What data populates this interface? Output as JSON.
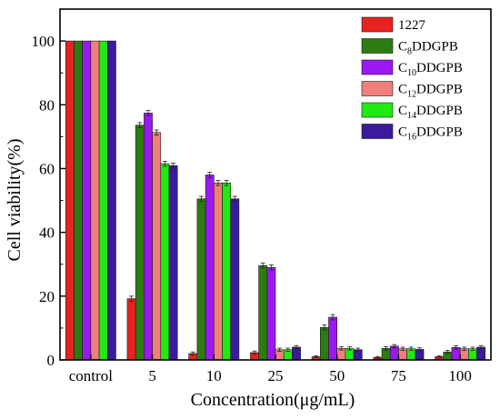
{
  "chart_data": {
    "type": "bar",
    "xlabel": "Concentration(μg/mL)",
    "ylabel": "Cell viability(%)",
    "ylim": [
      0,
      110
    ],
    "yticks": [
      0,
      20,
      40,
      60,
      80,
      100
    ],
    "grid": false,
    "legend_position": "top-right",
    "categories": [
      "control",
      "5",
      "10",
      "25",
      "50",
      "75",
      "100"
    ],
    "series": [
      {
        "name": "1227",
        "prefix": "",
        "sub": "",
        "suffix": "1227",
        "color": "#e8221e",
        "values": [
          100,
          19.2,
          2.0,
          2.3,
          1.0,
          0.8,
          1.0
        ],
        "errors": [
          0,
          0.8,
          0.5,
          0.5,
          0.3,
          0.3,
          0.3
        ]
      },
      {
        "name": "C8DDGPB",
        "prefix": "C",
        "sub": "8",
        "suffix": "DDGPB",
        "color": "#2c7c12",
        "values": [
          100,
          73.6,
          50.5,
          29.6,
          10.2,
          3.6,
          2.5
        ],
        "errors": [
          0,
          0.8,
          0.8,
          0.8,
          0.8,
          0.5,
          0.5
        ]
      },
      {
        "name": "C10DDGPB",
        "prefix": "C",
        "sub": "10",
        "suffix": "DDGPB",
        "color": "#9a19ef",
        "values": [
          100,
          77.4,
          58.0,
          29.0,
          13.4,
          4.3,
          3.9
        ],
        "errors": [
          0,
          0.8,
          0.8,
          0.8,
          0.8,
          0.5,
          0.5
        ]
      },
      {
        "name": "C12DDGPB",
        "prefix": "C",
        "sub": "12",
        "suffix": "DDGPB",
        "color": "#f07f7b",
        "values": [
          100,
          71.3,
          55.5,
          3.2,
          3.6,
          3.5,
          3.5
        ],
        "errors": [
          0,
          0.8,
          0.8,
          0.5,
          0.5,
          0.5,
          0.5
        ]
      },
      {
        "name": "C14DDGPB",
        "prefix": "C",
        "sub": "14",
        "suffix": "DDGPB",
        "color": "#20ea12",
        "values": [
          100,
          61.5,
          55.5,
          3.2,
          3.6,
          3.5,
          3.5
        ],
        "errors": [
          0,
          0.8,
          0.8,
          0.5,
          0.5,
          0.5,
          0.5
        ]
      },
      {
        "name": "C16DDGPB",
        "prefix": "C",
        "sub": "16",
        "suffix": "DDGPB",
        "color": "#3b1a9c",
        "values": [
          100,
          60.9,
          50.5,
          4.0,
          3.2,
          3.3,
          4.0
        ],
        "errors": [
          0,
          0.8,
          0.8,
          0.5,
          0.5,
          0.5,
          0.5
        ]
      }
    ]
  }
}
